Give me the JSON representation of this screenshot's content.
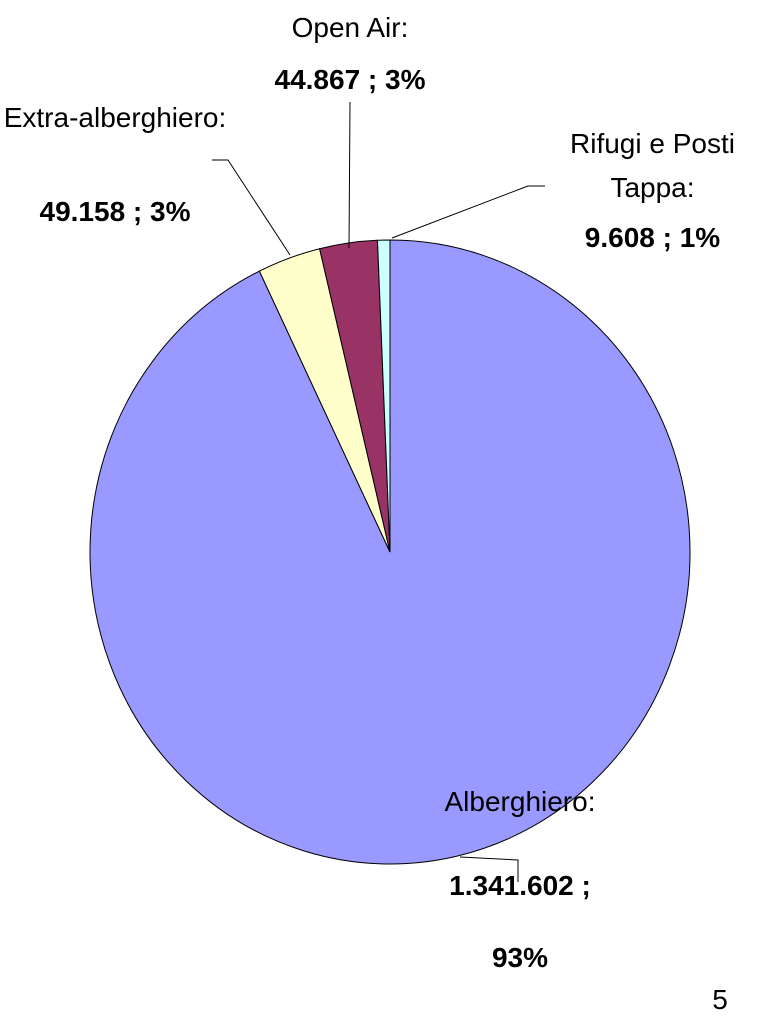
{
  "chart_data": {
    "type": "pie",
    "categories": [
      "Alberghiero:",
      "Extra-alberghiero:",
      "Open Air:",
      "Rifugi e Posti Tappa:"
    ],
    "values": [
      1341602,
      49158,
      44867,
      9608
    ],
    "value_labels": [
      "1.341.602 ; 93%",
      "49.158 ; 3%",
      "44.867 ; 3%",
      "9.608 ; 1%"
    ],
    "colors": [
      "#9999ff",
      "#ffffcc",
      "#993366",
      "#ccffff"
    ],
    "page_number": "5"
  }
}
